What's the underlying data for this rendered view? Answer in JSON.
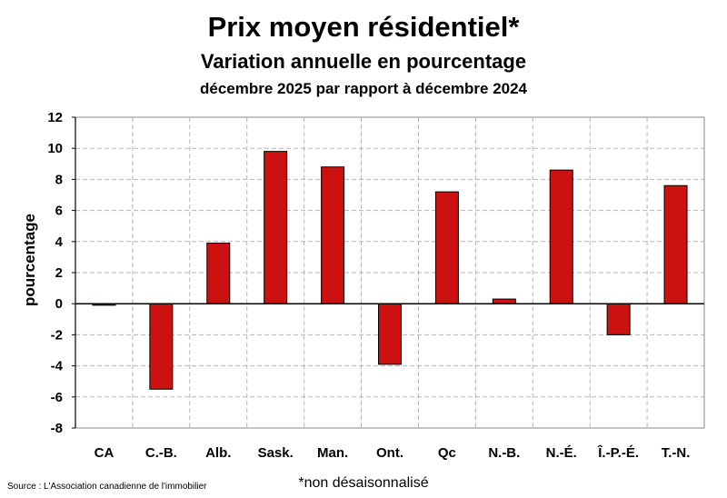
{
  "chart_data": {
    "type": "bar",
    "title": "Prix moyen résidentiel*",
    "subtitle": "Variation annuelle en pourcentage",
    "subtitle2": "décembre 2025 par rapport à décembre 2024",
    "xlabel": "",
    "ylabel": "pourcentage",
    "categories": [
      "CA",
      "C.-B.",
      "Alb.",
      "Sask.",
      "Man.",
      "Ont.",
      "Qc",
      "N.-B.",
      "N.-É.",
      "Î.-P.-É.",
      "T.-N."
    ],
    "values": [
      -0.1,
      -5.5,
      3.9,
      9.8,
      8.8,
      -3.9,
      7.2,
      0.3,
      8.6,
      -2.0,
      7.6
    ],
    "ylim": [
      -8,
      12
    ],
    "yticks": [
      12,
      10,
      8,
      6,
      4,
      2,
      0,
      -2,
      -4,
      -6,
      -8
    ],
    "grid": true,
    "bar_color": "#cc1111",
    "source": "Source : L'Association canadienne de l'immobilier",
    "note": "*non désaisonnalisé"
  }
}
